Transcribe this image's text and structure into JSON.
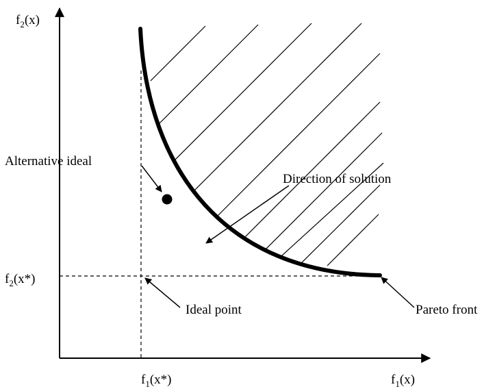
{
  "diagram": {
    "y_axis_label": {
      "main": "f",
      "sub": "2",
      "rest": "(x)"
    },
    "x_axis_label": {
      "main": "f",
      "sub": "1",
      "rest": "(x)"
    },
    "f2_star_label": {
      "main": "f",
      "sub": "2",
      "rest": "(x*)"
    },
    "f1_star_label": {
      "main": "f",
      "sub": "1",
      "rest": "(x*)"
    },
    "alternative_ideal_label": "Alternative ideal",
    "direction_label": "Direction of solution",
    "ideal_point_label": "Ideal point",
    "pareto_front_label": "Pareto front"
  }
}
